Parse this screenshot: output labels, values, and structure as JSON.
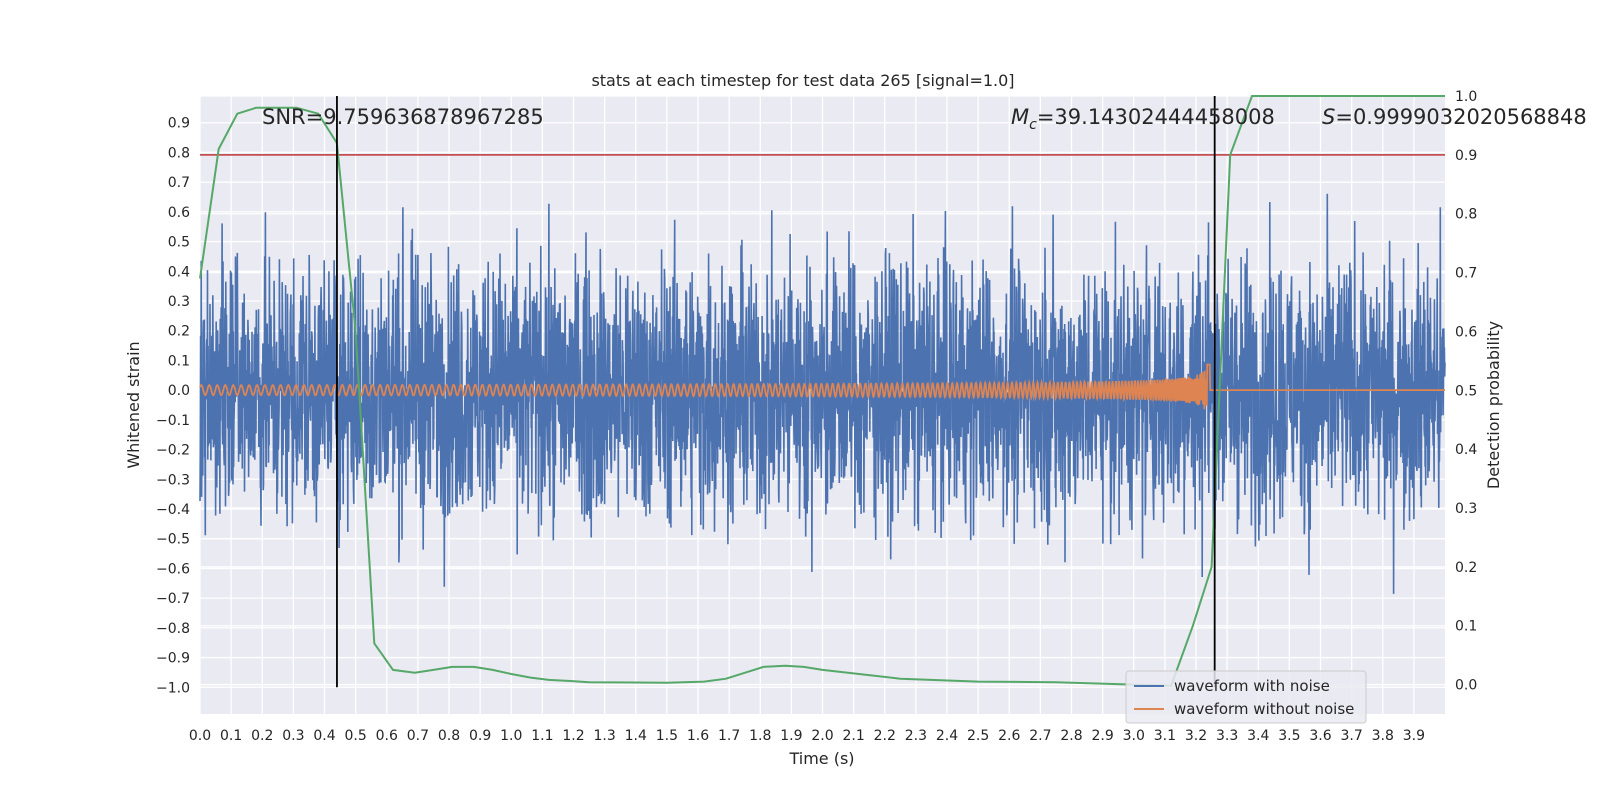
{
  "chart_data": {
    "type": "line",
    "title": "stats at each timestep for test data 265 [signal=1.0]",
    "xlabel": "Time (s)",
    "ylabel_left": "Whitened strain",
    "ylabel_right": "Detection probability",
    "xlim": [
      0.0,
      4.0
    ],
    "ylim_left": [
      -1.09,
      0.99
    ],
    "ylim_right": [
      -0.05,
      1.0
    ],
    "x_ticks": [
      "0.0",
      "0.1",
      "0.2",
      "0.3",
      "0.4",
      "0.5",
      "0.6",
      "0.7",
      "0.8",
      "0.9",
      "1.0",
      "1.1",
      "1.2",
      "1.3",
      "1.4",
      "1.5",
      "1.6",
      "1.7",
      "1.8",
      "1.9",
      "2.0",
      "2.1",
      "2.2",
      "2.3",
      "2.4",
      "2.5",
      "2.6",
      "2.7",
      "2.8",
      "2.9",
      "3.0",
      "3.1",
      "3.2",
      "3.3",
      "3.4",
      "3.5",
      "3.6",
      "3.7",
      "3.8",
      "3.9"
    ],
    "y_ticks_left": [
      "0.9",
      "0.8",
      "0.7",
      "0.6",
      "0.5",
      "0.4",
      "0.3",
      "0.2",
      "0.1",
      "0.0",
      "−0.1",
      "−0.2",
      "−0.3",
      "−0.4",
      "−0.5",
      "−0.6",
      "−0.7",
      "−0.8",
      "−0.9",
      "−1.0"
    ],
    "y_ticks_right": [
      "1.0",
      "0.9",
      "0.8",
      "0.7",
      "0.6",
      "0.5",
      "0.4",
      "0.3",
      "0.2",
      "0.1",
      "0.0"
    ],
    "annotations": {
      "snr": "SNR=9.759636878967285",
      "mc_symbol": "M",
      "mc_sub": "c",
      "mc_value": "=39.14302444458008",
      "s_symbol": "S",
      "s_value": "=0.9999032020568848"
    },
    "threshold": 0.9,
    "vlines_x": [
      0.44,
      3.26
    ],
    "series": [
      {
        "name": "waveform with noise",
        "color": "#4c72b0",
        "axis": "left",
        "noise_sigma": 0.22,
        "extent": [
          -1.0,
          0.9
        ]
      },
      {
        "name": "waveform without noise",
        "color": "#dd8452",
        "axis": "left",
        "merger_time": 3.24,
        "peak_amplitude": 0.45
      },
      {
        "name": "detection probability",
        "color": "#55a868",
        "axis": "right",
        "x": [
          0.0,
          0.06,
          0.12,
          0.18,
          0.25,
          0.31,
          0.38,
          0.44,
          0.5,
          0.56,
          0.62,
          0.69,
          0.75,
          0.81,
          0.88,
          0.94,
          1.0,
          1.06,
          1.12,
          1.19,
          1.25,
          1.5,
          1.62,
          1.69,
          1.75,
          1.81,
          1.88,
          1.94,
          2.0,
          2.25,
          2.5,
          2.75,
          3.0,
          3.12,
          3.19,
          3.25,
          3.31,
          3.38,
          3.5,
          3.75,
          4.0
        ],
        "y": [
          0.69,
          0.91,
          0.97,
          0.98,
          0.98,
          0.98,
          0.97,
          0.92,
          0.6,
          0.07,
          0.025,
          0.02,
          0.025,
          0.03,
          0.03,
          0.025,
          0.018,
          0.012,
          0.008,
          0.006,
          0.004,
          0.003,
          0.005,
          0.01,
          0.02,
          0.03,
          0.032,
          0.03,
          0.025,
          0.01,
          0.005,
          0.004,
          0.0,
          -0.002,
          0.1,
          0.2,
          0.9,
          1.0,
          1.0,
          1.0,
          1.0
        ]
      },
      {
        "name": "threshold",
        "color": "#c44e52",
        "axis": "right"
      }
    ],
    "legend": {
      "placement": "lower-right",
      "entries": [
        "waveform with noise",
        "waveform without noise"
      ]
    },
    "grid": true
  }
}
